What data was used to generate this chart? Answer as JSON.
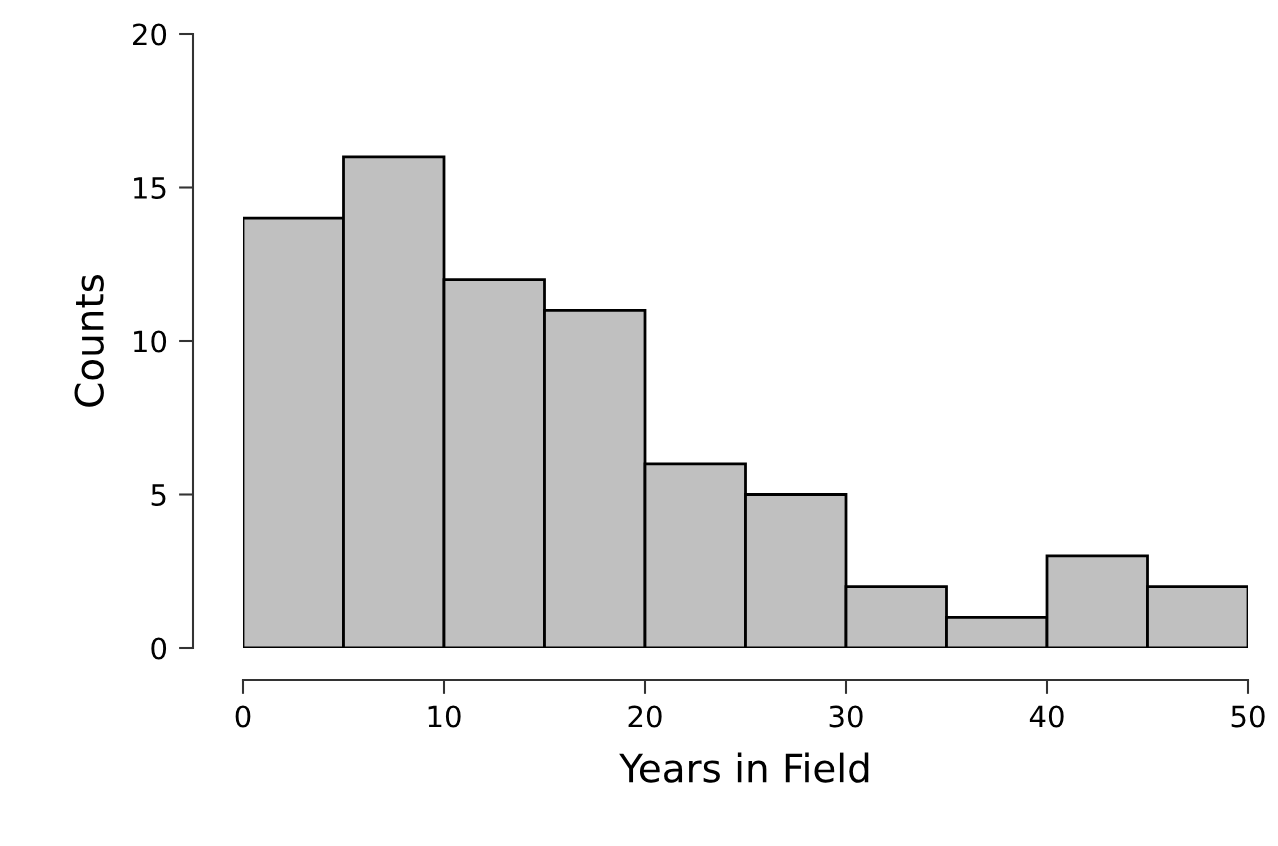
{
  "chart_data": {
    "type": "histogram",
    "xlabel": "Years in Field",
    "ylabel": "Counts",
    "bins": [
      0,
      5,
      10,
      15,
      20,
      25,
      30,
      35,
      40,
      45,
      50
    ],
    "values": [
      14,
      16,
      12,
      11,
      6,
      5,
      2,
      1,
      3,
      2
    ],
    "color": "#c0c0c0",
    "xlim": [
      0,
      50
    ],
    "xticks": [
      0,
      10,
      20,
      30,
      40,
      50
    ],
    "ylim": [
      0,
      20
    ],
    "yticks": [
      0,
      5,
      10,
      15,
      20
    ],
    "grid": false,
    "legend": false
  }
}
